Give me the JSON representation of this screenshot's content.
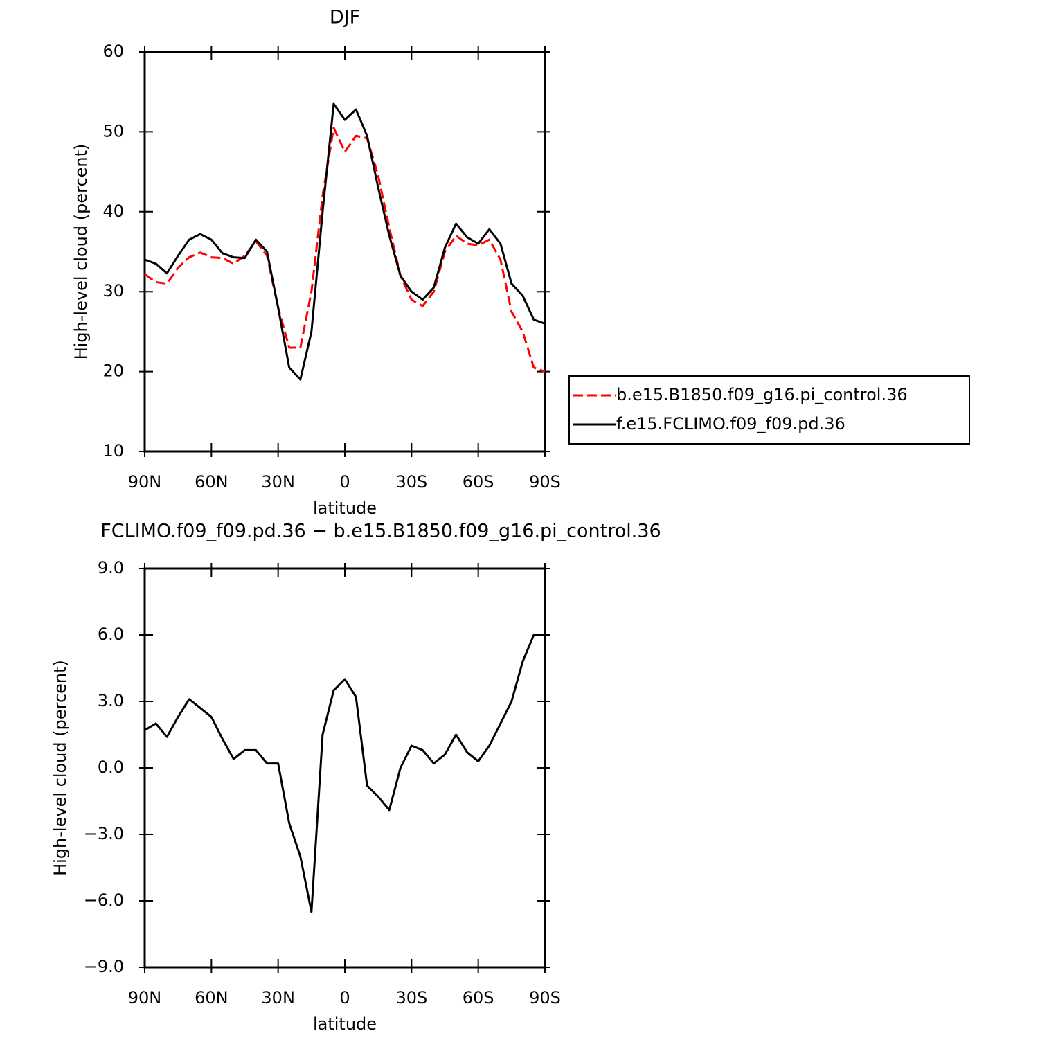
{
  "chart_data": [
    {
      "type": "line",
      "title": "DJF",
      "xlabel": "latitude",
      "ylabel": "High-level cloud (percent)",
      "x": [
        90,
        85,
        80,
        75,
        70,
        65,
        60,
        55,
        50,
        45,
        40,
        35,
        30,
        25,
        20,
        15,
        10,
        5,
        0,
        -5,
        -10,
        -15,
        -20,
        -25,
        -30,
        -35,
        -40,
        -45,
        -50,
        -55,
        -60,
        -65,
        -70,
        -75,
        -80,
        -85,
        -90
      ],
      "xlim": [
        90,
        -90
      ],
      "xticks": [
        {
          "value": 90,
          "label": "90N"
        },
        {
          "value": 60,
          "label": "60N"
        },
        {
          "value": 30,
          "label": "30N"
        },
        0,
        {
          "value": -30,
          "label": "30S"
        },
        {
          "value": -60,
          "label": "60S"
        },
        {
          "value": -90,
          "label": "90S"
        }
      ],
      "ylim": [
        10,
        60
      ],
      "yticks": [
        10,
        20,
        30,
        40,
        50,
        60
      ],
      "legend": "right",
      "series": [
        {
          "name": "b.e15.B1850.f09_g16.pi_control.36",
          "color": "#ff0000",
          "dash": true,
          "values": [
            32.2,
            31.2,
            31,
            33,
            34.3,
            34.9,
            34.3,
            34.2,
            33.5,
            34.5,
            36.3,
            34.5,
            28,
            23,
            23,
            30,
            42,
            50.5,
            47.5,
            49.5,
            49.2,
            44.5,
            38,
            32,
            29,
            28.2,
            30,
            35,
            37,
            36,
            35.8,
            36.5,
            34,
            27.5,
            25,
            20.5,
            20
          ]
        },
        {
          "name": "f.e15.FCLIMO.f09_f09.pd.36",
          "color": "#000000",
          "dash": false,
          "values": [
            34,
            33.5,
            32.3,
            34.5,
            36.5,
            37.2,
            36.5,
            34.8,
            34.3,
            34.2,
            36.5,
            35,
            28,
            20.5,
            19,
            25,
            40,
            53.5,
            51.5,
            52.8,
            49.5,
            43,
            37,
            32,
            30,
            29,
            30.5,
            35.5,
            38.5,
            36.8,
            36,
            37.8,
            36,
            31,
            29.5,
            26.5,
            26
          ]
        }
      ]
    },
    {
      "type": "line",
      "title": "FCLIMO.f09_f09.pd.36 − b.e15.B1850.f09_g16.pi_control.36",
      "xlabel": "latitude",
      "ylabel": "High-level cloud (percent)",
      "x": [
        90,
        85,
        80,
        75,
        70,
        65,
        60,
        55,
        50,
        45,
        40,
        35,
        30,
        25,
        20,
        15,
        10,
        5,
        0,
        -5,
        -10,
        -15,
        -20,
        -25,
        -30,
        -35,
        -40,
        -45,
        -50,
        -55,
        -60,
        -65,
        -70,
        -75,
        -80,
        -85,
        -90
      ],
      "xlim": [
        90,
        -90
      ],
      "xticks": [
        {
          "value": 90,
          "label": "90N"
        },
        {
          "value": 60,
          "label": "60N"
        },
        {
          "value": 30,
          "label": "30N"
        },
        0,
        {
          "value": -30,
          "label": "30S"
        },
        {
          "value": -60,
          "label": "60S"
        },
        {
          "value": -90,
          "label": "90S"
        }
      ],
      "ylim": [
        -9,
        9
      ],
      "yticks": [
        {
          "value": -9,
          "label": "−9.0"
        },
        {
          "value": -6,
          "label": "−6.0"
        },
        {
          "value": -3,
          "label": "−3.0"
        },
        {
          "value": 0,
          "label": "0.0"
        },
        {
          "value": 3,
          "label": "3.0"
        },
        {
          "value": 6,
          "label": "6.0"
        },
        {
          "value": 9,
          "label": "9.0"
        }
      ],
      "series": [
        {
          "color": "#000000",
          "dash": false,
          "values": [
            1.7,
            2.0,
            1.4,
            2.3,
            3.1,
            2.7,
            2.3,
            1.3,
            0.4,
            0.8,
            0.8,
            0.2,
            0.2,
            -2.5,
            -4.0,
            -6.5,
            1.5,
            3.5,
            4.0,
            3.2,
            -0.8,
            -1.3,
            -1.9,
            0.0,
            1.0,
            0.8,
            0.2,
            0.6,
            1.5,
            0.7,
            0.3,
            1.0,
            2.0,
            3.0,
            4.8,
            6.0,
            6.0
          ]
        }
      ]
    }
  ]
}
